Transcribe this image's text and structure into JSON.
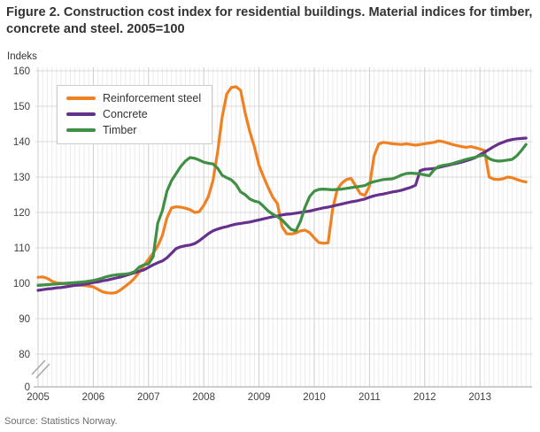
{
  "title": "Figure 2. Construction cost index for residential buildings. Material indices for timber, concrete and steel. 2005=100",
  "y_axis_unit": "Indeks",
  "source": "Source: Statistics Norway.",
  "colors": {
    "steel": "#F08122",
    "concrete": "#66308D",
    "timber": "#3F8F44",
    "grid_minor": "#ebebeb",
    "grid_year": "#cccccc",
    "grid_horizontal": "#d8d8d8",
    "axis_line": "#b0b0b0",
    "tick_text": "#404040"
  },
  "chart_data": {
    "type": "line",
    "title": "Figure 2. Construction cost index for residential buildings. Material indices for timber, concrete and steel. 2005=100",
    "ylabel": "Indeks",
    "frequency": "monthly",
    "x_start": "2005-01",
    "x_end": "2013-11",
    "x_tick_labels": [
      "2005",
      "2006",
      "2007",
      "2008",
      "2009",
      "2010",
      "2011",
      "2012",
      "2013"
    ],
    "y_ticks": [
      0,
      80,
      90,
      100,
      110,
      120,
      130,
      140,
      150,
      160
    ],
    "ylim": [
      80,
      160
    ],
    "y_axis_break": true,
    "grid": true,
    "legend_position": "top-left",
    "series": [
      {
        "name": "Reinforcement steel",
        "color": "#F08122",
        "values": [
          101.7,
          101.8,
          101.4,
          100.6,
          100.1,
          100.0,
          99.9,
          99.8,
          99.6,
          99.5,
          99.4,
          99.2,
          99.0,
          98.3,
          97.6,
          97.3,
          97.2,
          97.4,
          98.2,
          99.2,
          100.2,
          101.5,
          103.2,
          105.0,
          106.8,
          108.5,
          110.5,
          113.5,
          118.5,
          121.3,
          121.6,
          121.5,
          121.2,
          120.8,
          120.0,
          120.2,
          122.0,
          124.5,
          129.0,
          137.0,
          147.0,
          153.5,
          155.3,
          155.5,
          154.5,
          148.0,
          142.8,
          138.5,
          133.3,
          130.0,
          127.0,
          124.3,
          122.5,
          116.0,
          114.0,
          113.9,
          114.2,
          114.8,
          115.0,
          114.3,
          112.8,
          111.5,
          111.3,
          111.4,
          121.0,
          126.5,
          128.3,
          129.3,
          129.6,
          127.5,
          125.3,
          124.8,
          127.5,
          136.0,
          139.3,
          139.8,
          139.6,
          139.4,
          139.3,
          139.2,
          139.4,
          139.2,
          139.0,
          139.2,
          139.4,
          139.6,
          139.8,
          140.2,
          140.0,
          139.6,
          139.2,
          138.9,
          138.6,
          138.4,
          138.6,
          138.3,
          137.9,
          137.5,
          130.0,
          129.4,
          129.3,
          129.5,
          130.0,
          129.8,
          129.3,
          128.9,
          128.6
        ]
      },
      {
        "name": "Concrete",
        "color": "#66308D",
        "values": [
          98.0,
          98.2,
          98.4,
          98.5,
          98.7,
          98.8,
          99.0,
          99.2,
          99.4,
          99.5,
          99.7,
          99.9,
          100.2,
          100.4,
          100.7,
          100.9,
          101.2,
          101.5,
          101.8,
          102.2,
          102.6,
          103.0,
          103.4,
          103.8,
          104.5,
          105.2,
          105.8,
          106.3,
          107.2,
          108.5,
          109.8,
          110.3,
          110.6,
          110.8,
          111.2,
          112.0,
          113.0,
          114.0,
          114.8,
          115.3,
          115.7,
          116.0,
          116.4,
          116.7,
          116.9,
          117.1,
          117.3,
          117.6,
          117.9,
          118.2,
          118.5,
          118.8,
          119.0,
          119.3,
          119.5,
          119.6,
          119.8,
          120.0,
          120.2,
          120.4,
          120.7,
          121.0,
          121.3,
          121.5,
          121.8,
          122.1,
          122.4,
          122.7,
          123.0,
          123.2,
          123.5,
          123.8,
          124.3,
          124.7,
          125.0,
          125.2,
          125.5,
          125.8,
          126.0,
          126.3,
          126.7,
          127.1,
          127.7,
          131.8,
          132.2,
          132.3,
          132.4,
          132.7,
          133.0,
          133.3,
          133.6,
          133.9,
          134.2,
          134.6,
          135.0,
          135.5,
          136.3,
          137.0,
          137.8,
          138.6,
          139.3,
          139.8,
          140.3,
          140.6,
          140.8,
          140.9,
          141.0
        ]
      },
      {
        "name": "Timber",
        "color": "#3F8F44",
        "values": [
          99.4,
          99.5,
          99.6,
          99.7,
          99.8,
          99.9,
          100.0,
          100.1,
          100.2,
          100.3,
          100.4,
          100.6,
          100.8,
          101.1,
          101.5,
          101.9,
          102.2,
          102.4,
          102.5,
          102.6,
          102.8,
          103.3,
          104.6,
          105.2,
          105.5,
          107.5,
          117.0,
          120.5,
          126.0,
          129.0,
          131.0,
          133.0,
          134.5,
          135.5,
          135.3,
          134.8,
          134.2,
          133.9,
          133.7,
          132.5,
          130.5,
          129.8,
          129.2,
          127.9,
          125.8,
          125.0,
          123.8,
          123.2,
          122.9,
          121.7,
          120.4,
          119.5,
          118.8,
          117.9,
          116.5,
          115.2,
          114.8,
          117.5,
          121.5,
          124.5,
          126.0,
          126.5,
          126.6,
          126.5,
          126.4,
          126.5,
          126.6,
          126.8,
          127.0,
          127.2,
          127.4,
          127.6,
          128.3,
          128.7,
          129.0,
          129.3,
          129.4,
          129.5,
          130.0,
          130.6,
          131.0,
          131.1,
          131.0,
          130.9,
          130.6,
          130.4,
          132.0,
          133.0,
          133.3,
          133.5,
          133.8,
          134.2,
          134.6,
          135.0,
          135.3,
          135.6,
          136.0,
          136.2,
          135.2,
          134.7,
          134.5,
          134.6,
          134.8,
          135.0,
          136.0,
          137.5,
          139.2
        ]
      }
    ]
  }
}
